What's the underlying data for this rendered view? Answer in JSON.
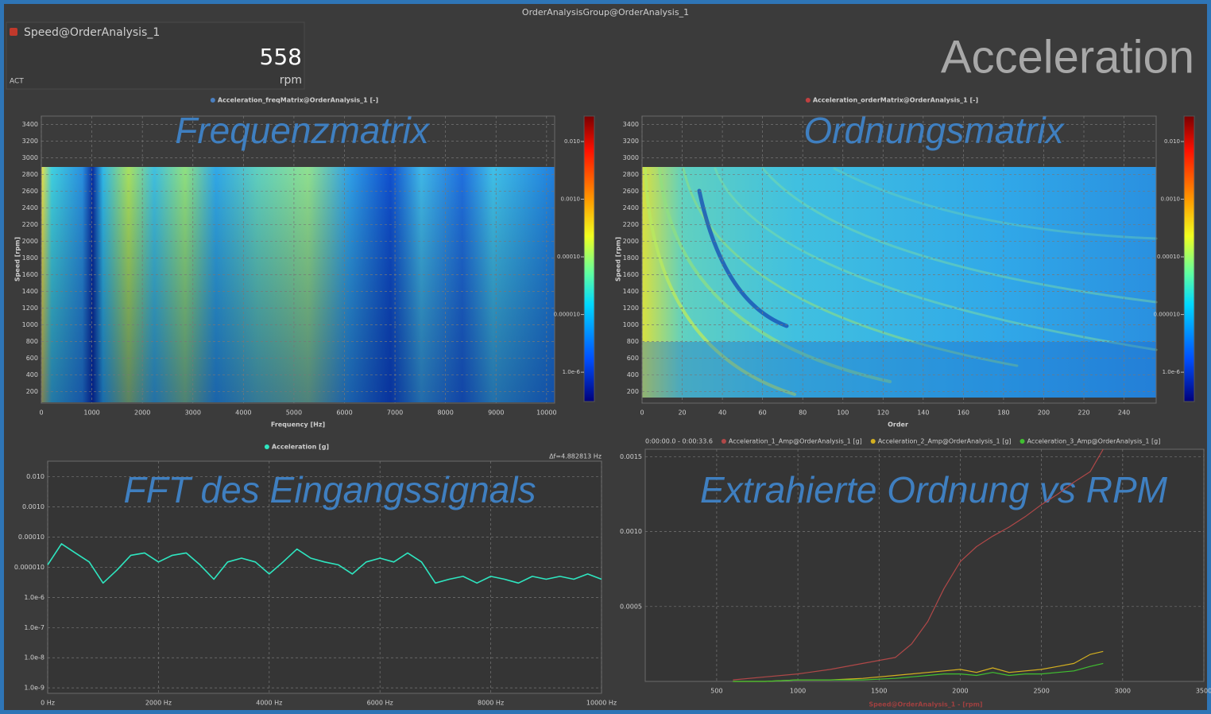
{
  "window_title": "OrderAnalysisGroup@OrderAnalysis_1",
  "header": "Acceleration",
  "speed_widget": {
    "name": "Speed@OrderAnalysis_1",
    "value": 558,
    "mode": "ACT",
    "unit": "rpm",
    "color": "#c0392b"
  },
  "chart_data": [
    {
      "type": "heatmap",
      "overlay_title": "Frequenzmatrix",
      "legend": "Acceleration_freqMatrix@OrderAnalysis_1 [-]",
      "legend_color": "#4a7fc0",
      "x_label": "Frequency [Hz]",
      "y_label": "Speed [rpm]",
      "xlim": [
        0,
        10160
      ],
      "xticks": [
        0,
        1000,
        2000,
        3000,
        4000,
        5000,
        6000,
        7000,
        8000,
        9000,
        10000
      ],
      "ylim": [
        60,
        3500
      ],
      "yticks": [
        200,
        400,
        600,
        800,
        1000,
        1200,
        1400,
        1600,
        1800,
        2000,
        2200,
        2400,
        2600,
        2800,
        3000,
        3200,
        3400
      ],
      "clim": [
        3.1e-07,
        0.0276
      ],
      "color_log": true,
      "cticks": [
        {
          "value": 0.01,
          "label": "0.010"
        },
        {
          "value": 0.001,
          "label": "0.0010"
        },
        {
          "value": 0.0001,
          "label": "0.00010"
        },
        {
          "value": 1e-05,
          "label": "0.000010"
        },
        {
          "value": 1e-06,
          "label": "1.0e-6"
        }
      ],
      "grid": true
    },
    {
      "type": "heatmap",
      "overlay_title": "Ordnungsmatrix",
      "legend": "Acceleration_orderMatrix@OrderAnalysis_1 [-]",
      "legend_color": "#c04040",
      "x_label": "Order",
      "y_label": "Speed [rpm]",
      "xlim": [
        0,
        256
      ],
      "xticks": [
        0,
        20,
        40,
        60,
        80,
        100,
        120,
        140,
        160,
        180,
        200,
        220,
        240
      ],
      "ylim": [
        60,
        3500
      ],
      "yticks": [
        200,
        400,
        600,
        800,
        1000,
        1200,
        1400,
        1600,
        1800,
        2000,
        2200,
        2400,
        2600,
        2800,
        3000,
        3200,
        3400
      ],
      "clim": [
        3.1e-07,
        0.0276
      ],
      "color_log": true,
      "cticks": [
        {
          "value": 0.01,
          "label": "0.010"
        },
        {
          "value": 0.001,
          "label": "0.0010"
        },
        {
          "value": 0.0001,
          "label": "0.00010"
        },
        {
          "value": 1e-05,
          "label": "0.000010"
        },
        {
          "value": 1e-06,
          "label": "1.0e-6"
        }
      ],
      "grid": true
    },
    {
      "type": "line",
      "overlay_title": "FFT des Eingangssignals",
      "annotation": "Δf=4.882813 Hz",
      "ylog": true,
      "x": [
        0,
        250,
        500,
        750,
        1000,
        1250,
        1500,
        1750,
        2000,
        2250,
        2500,
        2750,
        3000,
        3250,
        3500,
        3750,
        4000,
        4250,
        4500,
        4750,
        5000,
        5250,
        5500,
        5750,
        6000,
        6250,
        6500,
        6750,
        7000,
        7250,
        7500,
        7750,
        8000,
        8250,
        8500,
        8750,
        9000,
        9250,
        9500,
        9750,
        10000
      ],
      "series": [
        {
          "name": "Acceleration [g]",
          "color": "#2ee6c0",
          "values": [
            1.2e-05,
            6e-05,
            3e-05,
            1.5e-05,
            3e-06,
            8e-06,
            2.5e-05,
            3e-05,
            1.5e-05,
            2.5e-05,
            3e-05,
            1.2e-05,
            4e-06,
            1.5e-05,
            2e-05,
            1.5e-05,
            6e-06,
            1.5e-05,
            4e-05,
            2e-05,
            1.5e-05,
            1.2e-05,
            6e-06,
            1.5e-05,
            2e-05,
            1.5e-05,
            3e-05,
            1.5e-05,
            3e-06,
            4e-06,
            5e-06,
            3e-06,
            5e-06,
            4e-06,
            3e-06,
            5e-06,
            4e-06,
            5e-06,
            4e-06,
            6e-06,
            4e-06
          ]
        }
      ],
      "xlim": [
        0,
        10000
      ],
      "xticks": [
        {
          "value": 0,
          "label": "0 Hz"
        },
        {
          "value": 2000,
          "label": "2000 Hz"
        },
        {
          "value": 4000,
          "label": "4000 Hz"
        },
        {
          "value": 6000,
          "label": "6000 Hz"
        },
        {
          "value": 8000,
          "label": "8000 Hz"
        },
        {
          "value": 10000,
          "label": "10000 Hz"
        }
      ],
      "ylim": [
        6.6e-10,
        0.033
      ],
      "yticks": [
        {
          "value": 0.01,
          "label": "0.010"
        },
        {
          "value": 0.001,
          "label": "0.0010"
        },
        {
          "value": 0.0001,
          "label": "0.00010"
        },
        {
          "value": 1e-05,
          "label": "0.000010"
        },
        {
          "value": 1e-06,
          "label": "1.0e-6"
        },
        {
          "value": 1e-07,
          "label": "1.0e-7"
        },
        {
          "value": 1e-08,
          "label": "1.0e-8"
        },
        {
          "value": 1e-09,
          "label": "1.0e-9"
        }
      ],
      "grid": true
    },
    {
      "type": "line",
      "overlay_title": "Extrahierte Ordnung vs RPM",
      "time_range": "0:00:00.0 - 0:00:33.6",
      "x_label": "Speed@OrderAnalysis_1 - [rpm]",
      "x": [
        600,
        800,
        1000,
        1200,
        1400,
        1600,
        1700,
        1800,
        1900,
        2000,
        2100,
        2200,
        2300,
        2400,
        2500,
        2600,
        2700,
        2800,
        2880
      ],
      "series": [
        {
          "name": "Acceleration_1_Amp@OrderAnalysis_1 [g]",
          "color": "#b04848",
          "values": [
            1e-05,
            3e-05,
            5e-05,
            8e-05,
            0.00012,
            0.00016,
            0.00025,
            0.0004,
            0.00062,
            0.0008,
            0.0009,
            0.00097,
            0.00103,
            0.0011,
            0.00118,
            0.00125,
            0.00133,
            0.0014,
            0.00155
          ]
        },
        {
          "name": "Acceleration_2_Amp@OrderAnalysis_1 [g]",
          "color": "#d4b020",
          "values": [
            0,
            0,
            1e-05,
            1e-05,
            2e-05,
            4e-05,
            5e-05,
            6e-05,
            7e-05,
            8e-05,
            6e-05,
            9e-05,
            6e-05,
            7e-05,
            8e-05,
            0.0001,
            0.00012,
            0.00018,
            0.0002
          ]
        },
        {
          "name": "Acceleration_3_Amp@OrderAnalysis_1 [g]",
          "color": "#40c030",
          "values": [
            0,
            0,
            1e-05,
            1e-05,
            1e-05,
            2e-05,
            3e-05,
            4e-05,
            5e-05,
            5e-05,
            4e-05,
            6e-05,
            4e-05,
            5e-05,
            5e-05,
            6e-05,
            7e-05,
            0.0001,
            0.00012
          ]
        }
      ],
      "xlim": [
        60,
        3500
      ],
      "xticks": [
        500,
        1000,
        1500,
        2000,
        2500,
        3000,
        3500
      ],
      "ylim": [
        0,
        0.00155
      ],
      "yticks": [
        0.0005,
        {
          "value": 0.001,
          "label": "0.0010"
        },
        {
          "value": 0.0015,
          "label": "0.0015"
        }
      ],
      "grid": true
    }
  ]
}
